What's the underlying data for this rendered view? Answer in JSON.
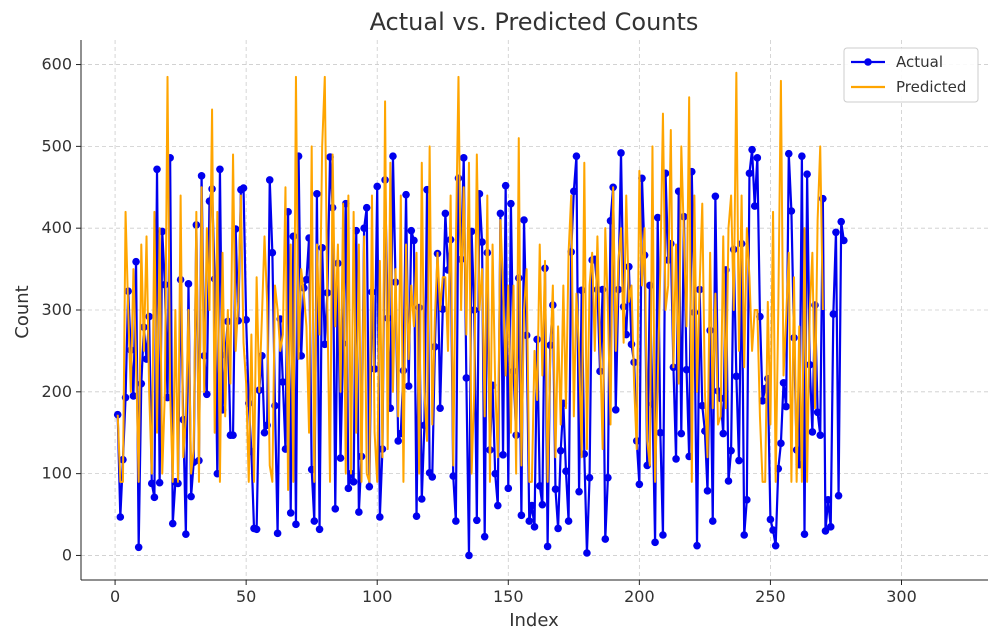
{
  "chart_data": {
    "type": "line",
    "title": "Actual vs. Predicted Counts",
    "xlabel": "Index",
    "ylabel": "Count",
    "xlim": [
      -13,
      333
    ],
    "ylim": [
      -30,
      630
    ],
    "xticks": [
      0,
      50,
      100,
      150,
      200,
      250,
      300
    ],
    "yticks": [
      0,
      100,
      200,
      300,
      400,
      500,
      600
    ],
    "grid": true,
    "legend_position": "top-right",
    "colors": {
      "actual": "#0000ee",
      "predicted": "#ffa500",
      "grid": "#cccccc",
      "axis": "#222222"
    },
    "series": [
      {
        "name": "Actual",
        "style": "line-with-markers",
        "x_start": 1,
        "x_step": 1,
        "values": [
          172,
          47,
          117,
          193,
          323,
          251,
          195,
          359,
          10,
          210,
          279,
          240,
          292,
          88,
          71,
          472,
          89,
          396,
          331,
          193,
          486,
          39,
          90,
          88,
          337,
          166,
          26,
          332,
          72,
          114,
          404,
          116,
          464,
          244,
          197,
          433,
          448,
          338,
          100,
          472,
          178,
          245,
          286,
          147,
          147,
          399,
          287,
          447,
          449,
          288,
          186,
          127,
          33,
          32,
          202,
          244,
          150,
          159,
          459,
          370,
          183,
          27,
          289,
          212,
          130,
          420,
          52,
          390,
          38,
          488,
          244,
          327,
          337,
          388,
          105,
          42,
          442,
          32,
          376,
          258,
          321,
          487,
          425,
          57,
          357,
          119,
          259,
          430,
          82,
          100,
          90,
          397,
          53,
          121,
          400,
          425,
          84,
          322,
          228,
          451,
          47,
          130,
          459,
          290,
          180,
          488,
          334,
          140,
          149,
          226,
          441,
          207,
          397,
          385,
          48,
          303,
          69,
          159,
          447,
          101,
          96,
          255,
          369,
          180,
          301,
          418,
          349,
          386,
          97,
          42,
          461,
          362,
          486,
          217,
          0,
          396,
          300,
          43,
          442,
          383,
          23,
          370,
          129,
          208,
          100,
          61,
          418,
          123,
          452,
          82,
          430,
          225,
          147,
          339,
          49,
          410,
          269,
          42,
          61,
          35,
          264,
          85,
          62,
          351,
          11,
          257,
          306,
          81,
          33,
          128,
          186,
          103,
          42,
          371,
          445,
          488,
          78,
          324,
          124,
          3,
          95,
          361,
          362,
          325,
          225,
          325,
          20,
          95,
          409,
          450,
          178,
          325,
          492,
          304,
          270,
          353,
          258,
          236,
          140,
          87,
          461,
          367,
          110,
          330,
          185,
          16,
          413,
          150,
          25,
          467,
          361,
          381,
          230,
          118,
          445,
          149,
          414,
          227,
          121,
          469,
          297,
          12,
          325,
          183,
          152,
          79,
          275,
          42,
          439,
          201,
          192,
          149,
          349,
          91,
          128,
          374,
          219,
          116,
          381,
          25,
          68,
          467,
          496,
          427,
          486,
          292,
          189,
          204,
          216,
          44,
          31,
          12,
          106,
          137,
          211,
          182,
          491,
          421,
          266,
          129,
          111,
          488,
          26,
          466,
          233,
          151,
          306,
          175,
          147,
          436,
          30,
          68,
          35,
          295,
          395,
          73,
          408,
          385
        ]
      },
      {
        "name": "Predicted",
        "style": "line",
        "x_start": 1,
        "x_step": 1,
        "values": [
          172,
          90,
          90,
          420,
          300,
          200,
          350,
          240,
          90,
          380,
          250,
          390,
          200,
          100,
          420,
          150,
          400,
          100,
          200,
          585,
          200,
          90,
          300,
          90,
          440,
          120,
          170,
          300,
          100,
          130,
          420,
          90,
          450,
          200,
          400,
          300,
          545,
          150,
          420,
          90,
          370,
          170,
          300,
          210,
          490,
          250,
          310,
          440,
          260,
          210,
          90,
          270,
          90,
          340,
          200,
          290,
          390,
          310,
          110,
          90,
          330,
          300,
          250,
          270,
          450,
          80,
          380,
          90,
          585,
          240,
          350,
          320,
          280,
          150,
          500,
          90,
          380,
          270,
          500,
          585,
          300,
          90,
          490,
          280,
          380,
          200,
          430,
          100,
          440,
          100,
          420,
          150,
          380,
          90,
          390,
          100,
          90,
          440,
          150,
          90,
          360,
          120,
          555,
          130,
          480,
          200,
          350,
          170,
          440,
          90,
          380,
          240,
          330,
          280,
          370,
          100,
          480,
          200,
          140,
          500,
          160,
          290,
          370,
          300,
          340,
          340,
          250,
          440,
          110,
          380,
          585,
          300,
          450,
          270,
          480,
          100,
          200,
          490,
          300,
          350,
          170,
          440,
          90,
          380,
          210,
          120,
          410,
          330,
          220,
          330,
          150,
          330,
          100,
          510,
          110,
          300,
          350,
          90,
          90,
          250,
          190,
          380,
          220,
          360,
          90,
          240,
          330,
          120,
          280,
          160,
          330,
          180,
          370,
          440,
          170,
          320,
          250,
          120,
          480,
          130,
          330,
          370,
          250,
          390,
          260,
          130,
          400,
          300,
          160,
          450,
          250,
          360,
          400,
          260,
          440,
          310,
          330,
          210,
          130,
          470,
          330,
          400,
          140,
          110,
          500,
          90,
          210,
          350,
          540,
          300,
          330,
          520,
          230,
          380,
          210,
          500,
          390,
          280,
          560,
          90,
          440,
          200,
          330,
          430,
          200,
          120,
          370,
          180,
          320,
          160,
          170,
          390,
          180,
          400,
          440,
          300,
          590,
          250,
          440,
          230,
          400,
          340,
          250,
          300,
          300,
          170,
          90,
          90,
          310,
          160,
          420,
          90,
          300,
          580,
          220,
          290,
          370,
          90,
          340,
          90,
          280,
          90,
          400,
          90,
          300,
          370,
          180,
          410,
          500,
          300
        ]
      }
    ]
  }
}
